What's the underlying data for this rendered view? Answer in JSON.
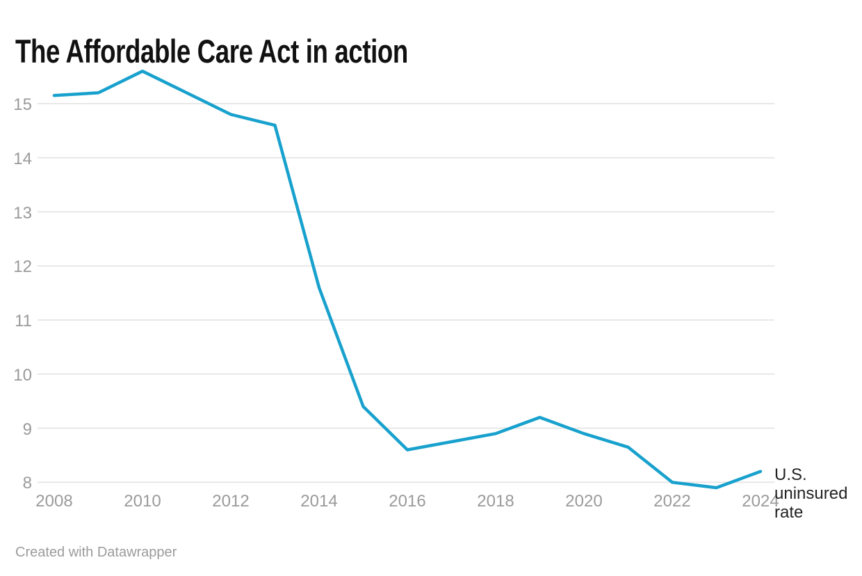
{
  "title": "The Affordable Care Act in action",
  "footer": {
    "attribution": "Created with Datawrapper"
  },
  "chart_data": {
    "type": "line",
    "title": "The Affordable Care Act in action",
    "x": [
      2008,
      2009,
      2010,
      2011,
      2012,
      2013,
      2014,
      2015,
      2016,
      2017,
      2018,
      2019,
      2020,
      2021,
      2022,
      2023,
      2024
    ],
    "series": [
      {
        "name": "U.S. uninsured rate",
        "values": [
          15.15,
          15.2,
          15.6,
          15.2,
          14.8,
          14.6,
          11.6,
          9.4,
          8.6,
          8.75,
          8.9,
          9.2,
          8.9,
          8.65,
          8.0,
          7.9,
          8.2
        ]
      }
    ],
    "annotation": "U.S. uninsured rate",
    "xlabel": "",
    "ylabel": "",
    "xlim": [
      2008,
      2024
    ],
    "ylim": [
      7.75,
      15.75
    ],
    "yticks": [
      8,
      9,
      10,
      11,
      12,
      13,
      14,
      15
    ],
    "xticks": [
      2008,
      2010,
      2012,
      2014,
      2016,
      2018,
      2020,
      2022,
      2024
    ],
    "grid": "horizontal-on",
    "legend_position": "inline-right-of-line-end",
    "colors": {
      "line": "#18a1cd",
      "grid": "#e7e7e7",
      "axis_labels": "#9a9a9a",
      "annotation_text": "#222222",
      "title_text": "#111111",
      "attribution_text": "#9b9b9b"
    }
  }
}
